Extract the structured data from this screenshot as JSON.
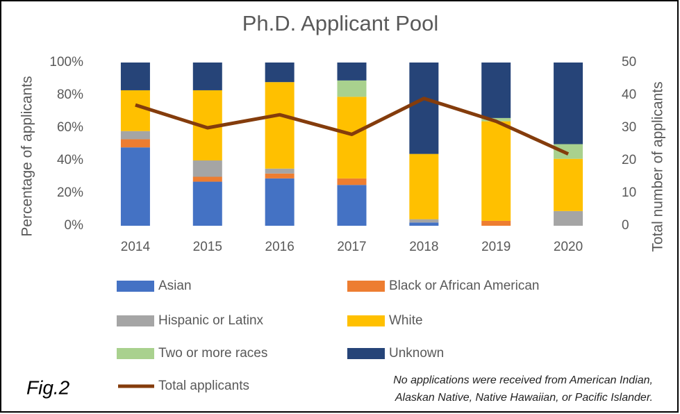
{
  "chart_data": {
    "type": "bar",
    "stacked": true,
    "title": "Ph.D. Applicant Pool",
    "ylabel": "Percentage of applicants",
    "y2label": "Total number of applicants",
    "categories": [
      "2014",
      "2015",
      "2016",
      "2017",
      "2018",
      "2019",
      "2020"
    ],
    "series": [
      {
        "name": "Asian",
        "color": "#4472c4",
        "values": [
          48,
          27,
          29,
          25,
          2,
          0,
          0
        ]
      },
      {
        "name": "Black or African American",
        "color": "#ed7d31",
        "values": [
          5,
          3,
          3,
          4,
          0,
          3,
          0
        ]
      },
      {
        "name": "Hispanic or Latinx",
        "color": "#a5a5a5",
        "values": [
          5,
          10,
          3,
          0,
          2,
          0,
          9
        ]
      },
      {
        "name": "White",
        "color": "#ffc000",
        "values": [
          25,
          43,
          53,
          50,
          40,
          61,
          32
        ]
      },
      {
        "name": "Two or more races",
        "color": "#a9d18e",
        "values": [
          0,
          0,
          0,
          10,
          0,
          2,
          9
        ]
      },
      {
        "name": "Unknown",
        "color": "#264478",
        "values": [
          17,
          17,
          12,
          11,
          56,
          34,
          50
        ]
      },
      {
        "name": "Total applicants",
        "color": "#843c0c",
        "type": "line",
        "axis": "y2",
        "values": [
          37,
          30,
          34,
          28,
          39,
          32,
          22
        ]
      }
    ],
    "ylim": [
      0,
      100
    ],
    "yticks": [
      {
        "value": 0,
        "label": "0%"
      },
      {
        "value": 20,
        "label": "20%"
      },
      {
        "value": 40,
        "label": "40%"
      },
      {
        "value": 60,
        "label": "60%"
      },
      {
        "value": 80,
        "label": "80%"
      },
      {
        "value": 100,
        "label": "100%"
      }
    ],
    "y2lim": [
      0,
      50
    ],
    "y2ticks": [
      0,
      10,
      20,
      30,
      40,
      50
    ],
    "figure_label": "Fig.2",
    "note": [
      "No applications were received from American Indian,",
      "Alaskan Native, Native Hawaiian, or Pacific Islander."
    ]
  }
}
